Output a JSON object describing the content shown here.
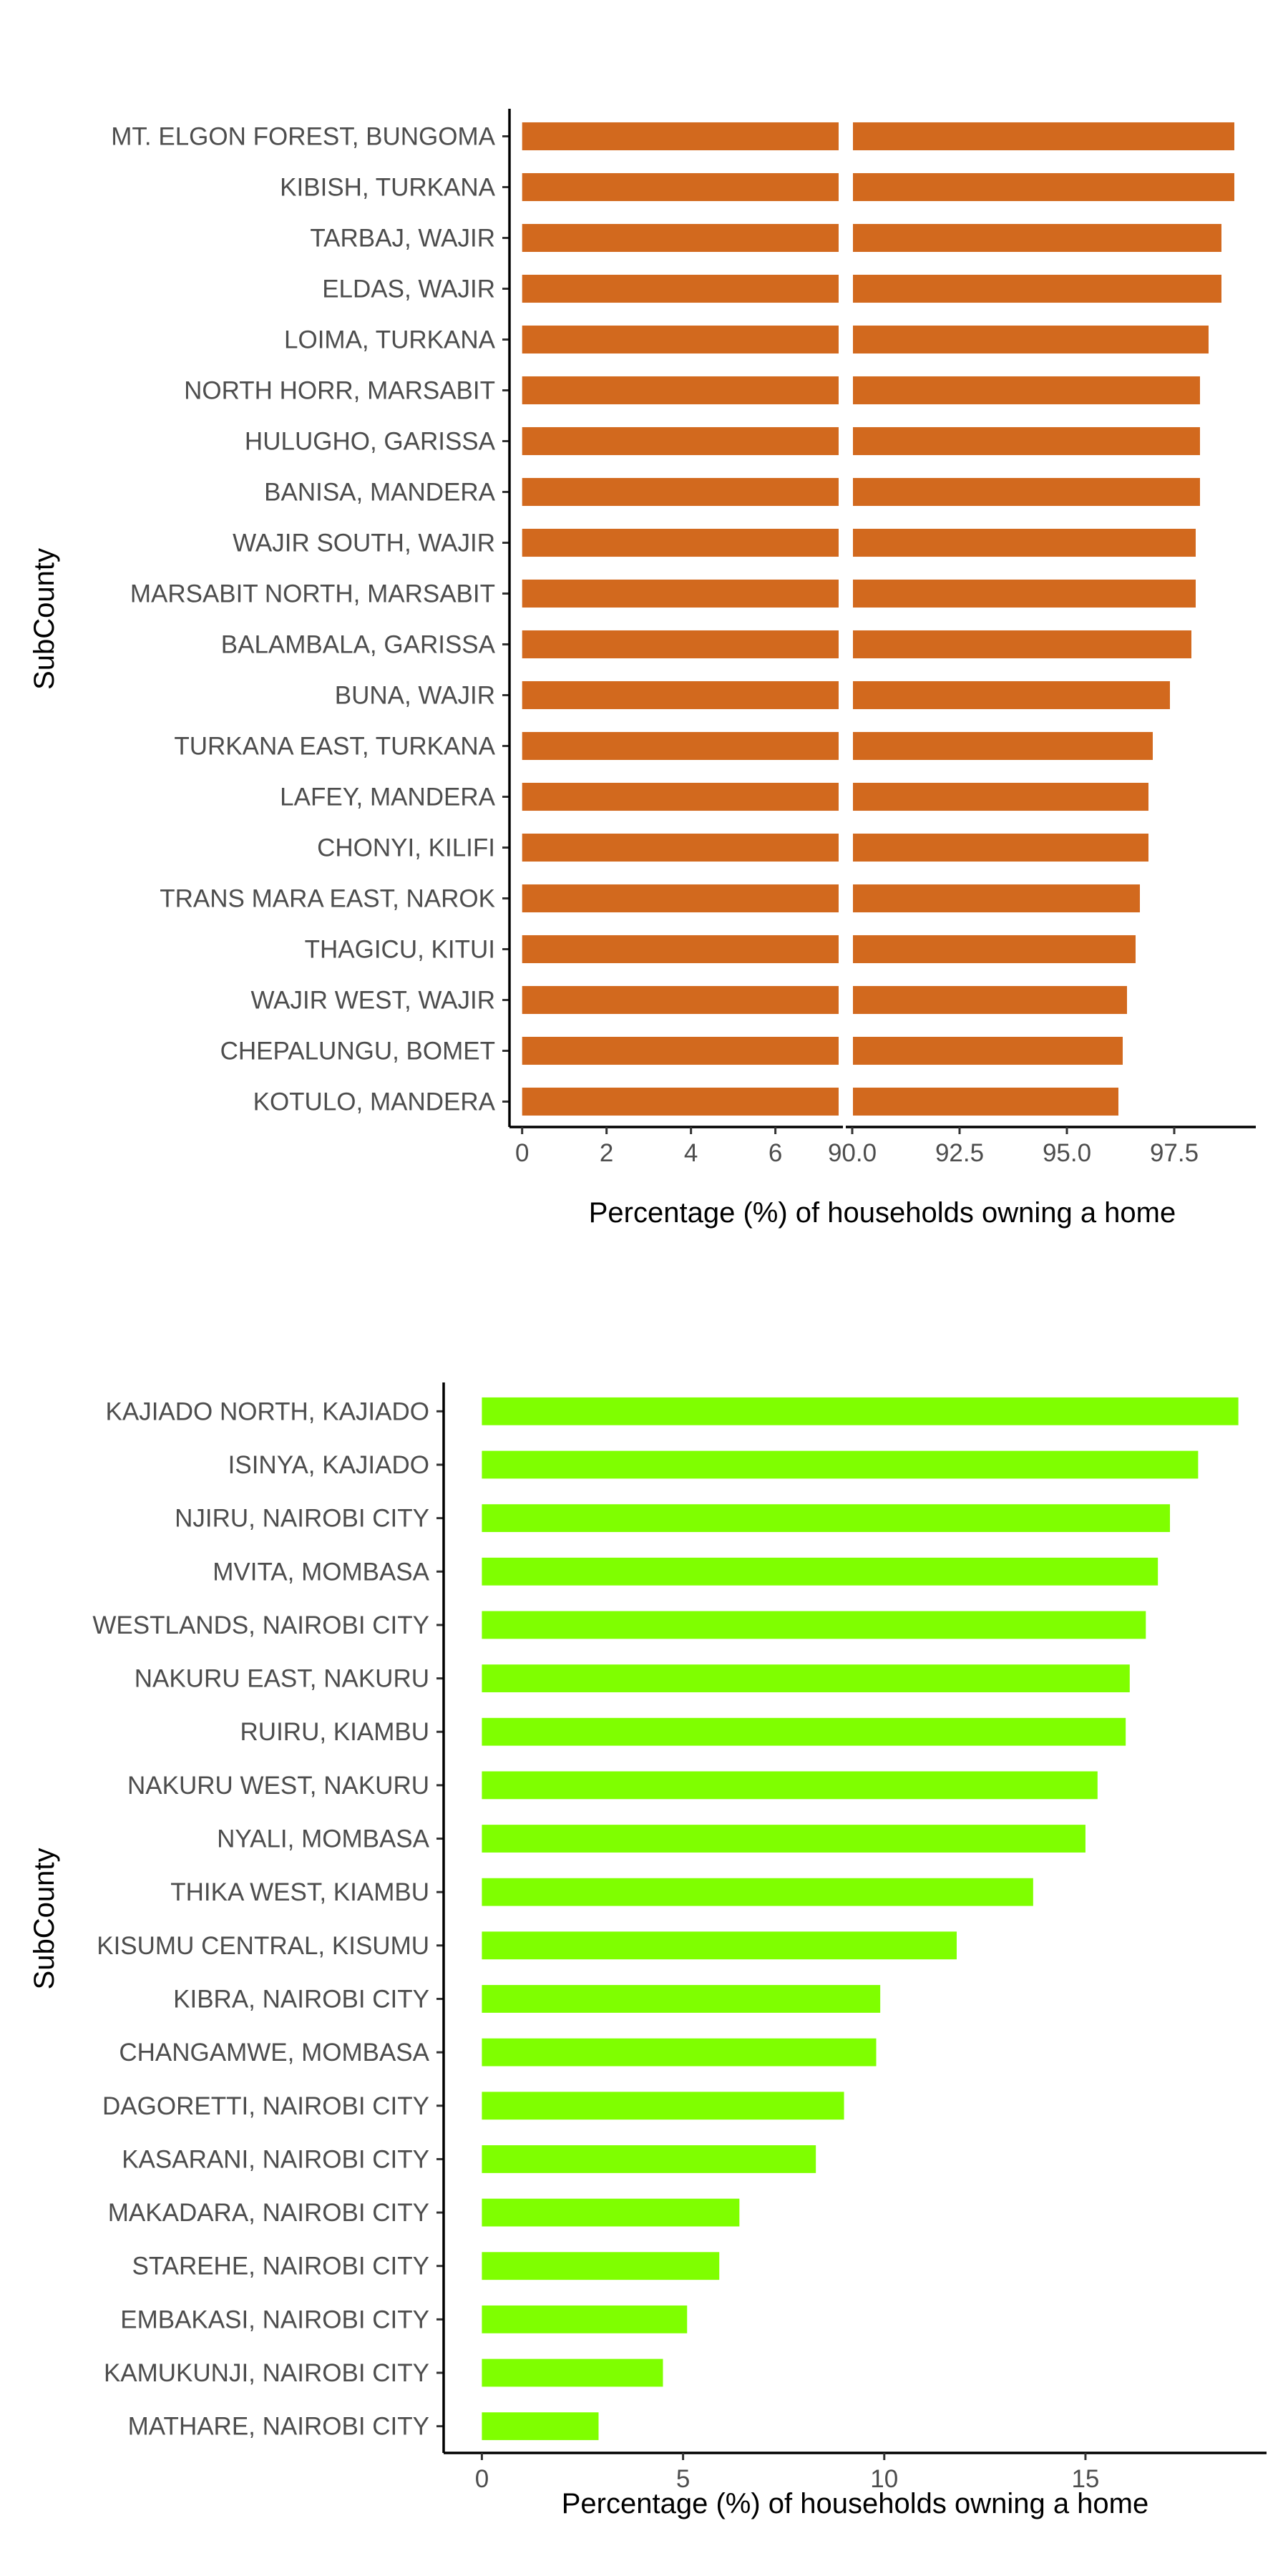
{
  "chart_data": [
    {
      "type": "bar",
      "orientation": "horizontal",
      "axis_break": true,
      "ylabel": "SubCounty",
      "xlabel": "Percentage (%) of households owning a home",
      "bar_color": "#D2691E",
      "x_segments": [
        {
          "xlim": [
            -0.3,
            7.6
          ],
          "ticks": [
            0,
            2,
            4,
            6
          ],
          "tick_labels": [
            "0",
            "2",
            "4",
            "6"
          ]
        },
        {
          "xlim": [
            89.85,
            99.4
          ],
          "ticks": [
            90.0,
            92.5,
            95.0,
            97.5
          ],
          "tick_labels": [
            "90.0",
            "92.5",
            "95.0",
            "97.5"
          ]
        }
      ],
      "categories": [
        "MT. ELGON FOREST, BUNGOMA",
        "KIBISH, TURKANA",
        "TARBAJ, WAJIR",
        "ELDAS, WAJIR",
        "LOIMA, TURKANA",
        "NORTH HORR, MARSABIT",
        "HULUGHO, GARISSA",
        "BANISA, MANDERA",
        "WAJIR SOUTH, WAJIR",
        "MARSABIT NORTH, MARSABIT",
        "BALAMBALA, GARISSA",
        "BUNA, WAJIR",
        "TURKANA EAST, TURKANA",
        "LAFEY, MANDERA",
        "CHONYI, KILIFI",
        "TRANS MARA EAST, NAROK",
        "THAGICU, KITUI",
        "WAJIR WEST, WAJIR",
        "CHEPALUNGU, BOMET",
        "KOTULO, MANDERA"
      ],
      "values": [
        98.9,
        98.9,
        98.6,
        98.6,
        98.3,
        98.1,
        98.1,
        98.1,
        98.0,
        98.0,
        97.9,
        97.4,
        97.0,
        96.9,
        96.9,
        96.7,
        96.6,
        96.4,
        96.3,
        96.2
      ]
    },
    {
      "type": "bar",
      "orientation": "horizontal",
      "axis_break": false,
      "ylabel": "SubCounty",
      "xlabel": "Percentage (%) of households owning a home",
      "bar_color": "#7FFF00",
      "xlim": [
        -0.95,
        19.5
      ],
      "x_ticks": [
        0,
        5,
        10,
        15
      ],
      "x_tick_labels": [
        "0",
        "5",
        "10",
        "15"
      ],
      "categories": [
        "KAJIADO NORTH, KAJIADO",
        "ISINYA, KAJIADO",
        "NJIRU, NAIROBI CITY",
        "MVITA, MOMBASA",
        "WESTLANDS, NAIROBI CITY",
        "NAKURU EAST, NAKURU",
        "RUIRU, KIAMBU",
        "NAKURU WEST, NAKURU",
        "NYALI, MOMBASA",
        "THIKA WEST, KIAMBU",
        "KISUMU CENTRAL, KISUMU",
        "KIBRA, NAIROBI CITY",
        "CHANGAMWE, MOMBASA",
        "DAGORETTI, NAIROBI CITY",
        "KASARANI, NAIROBI CITY",
        "MAKADARA, NAIROBI CITY",
        "STAREHE, NAIROBI CITY",
        "EMBAKASI, NAIROBI CITY",
        "KAMUKUNJI, NAIROBI CITY",
        "MATHARE, NAIROBI CITY"
      ],
      "values": [
        18.8,
        17.8,
        17.1,
        16.8,
        16.5,
        16.1,
        16.0,
        15.3,
        15.0,
        13.7,
        11.8,
        9.9,
        9.8,
        9.0,
        8.3,
        6.4,
        5.9,
        5.1,
        4.5,
        2.9
      ]
    }
  ]
}
